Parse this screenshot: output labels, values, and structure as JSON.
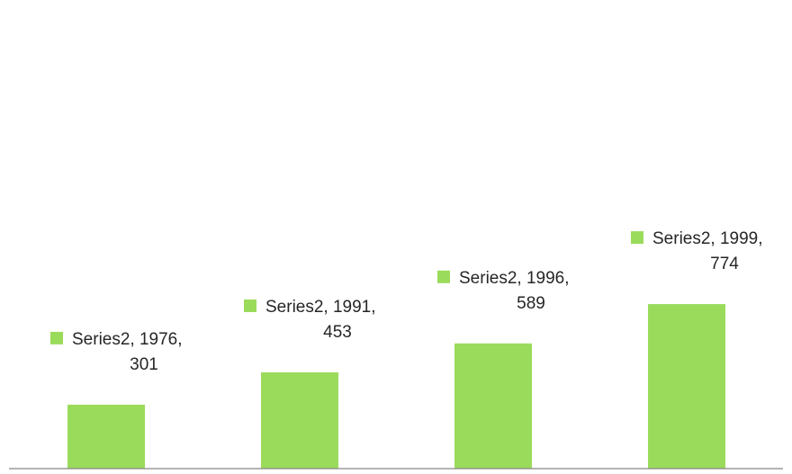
{
  "chart_data": {
    "type": "bar",
    "categories": [
      "1976",
      "1991",
      "1996",
      "1999"
    ],
    "series": [
      {
        "name": "Series2",
        "values": [
          301,
          453,
          589,
          774
        ],
        "color": "#9BDB5B"
      }
    ],
    "data_labels": [
      {
        "line1": "Series2, 1976,",
        "line2": "301"
      },
      {
        "line1": "Series2, 1991,",
        "line2": "453"
      },
      {
        "line1": "Series2, 1996,",
        "line2": "589"
      },
      {
        "line1": "Series2, 1999,",
        "line2": "774"
      }
    ],
    "title": "",
    "xlabel": "",
    "ylabel": "",
    "ylim": [
      0,
      800
    ],
    "grid": false,
    "legend": "none",
    "axis_color": "#868686",
    "label_color": "#262626"
  }
}
